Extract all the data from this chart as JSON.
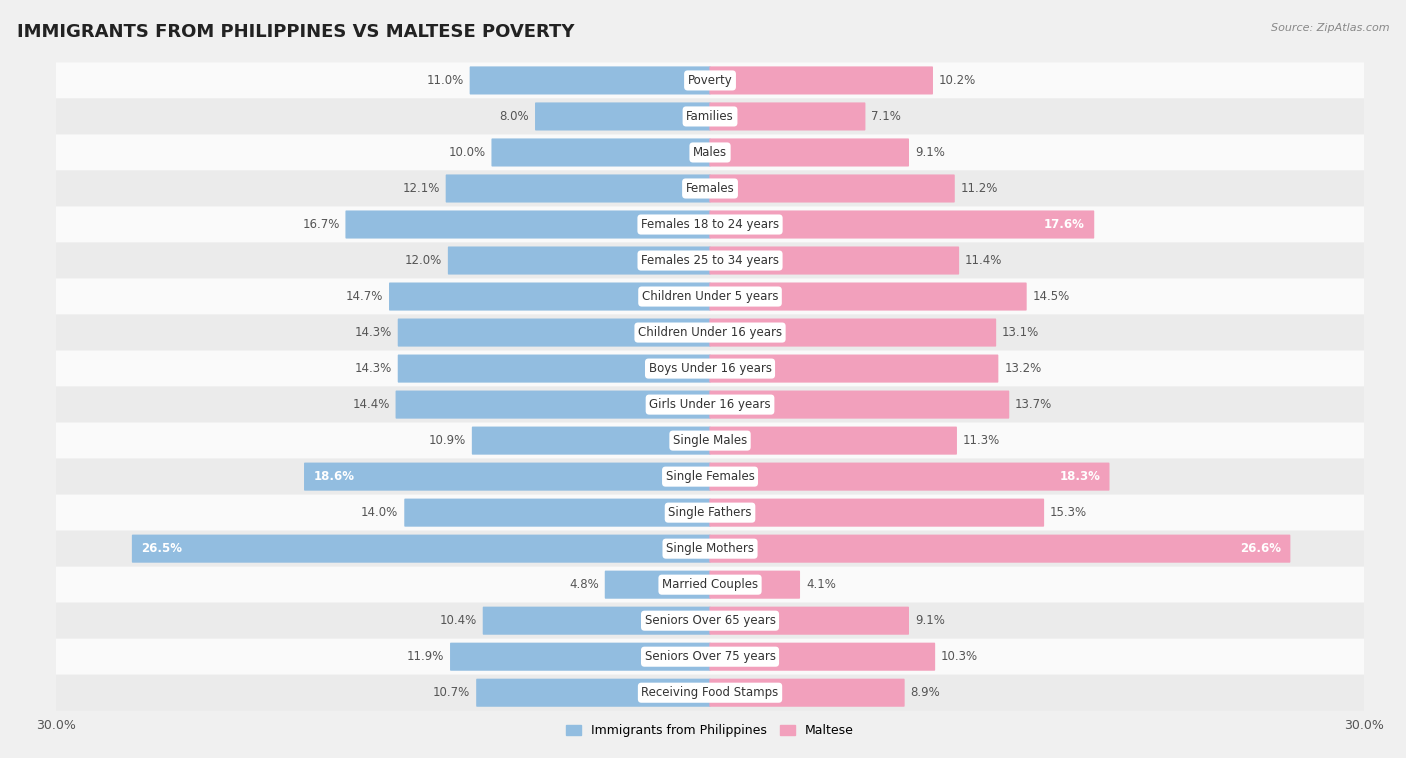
{
  "title": "IMMIGRANTS FROM PHILIPPINES VS MALTESE POVERTY",
  "source": "Source: ZipAtlas.com",
  "categories": [
    "Poverty",
    "Families",
    "Males",
    "Females",
    "Females 18 to 24 years",
    "Females 25 to 34 years",
    "Children Under 5 years",
    "Children Under 16 years",
    "Boys Under 16 years",
    "Girls Under 16 years",
    "Single Males",
    "Single Females",
    "Single Fathers",
    "Single Mothers",
    "Married Couples",
    "Seniors Over 65 years",
    "Seniors Over 75 years",
    "Receiving Food Stamps"
  ],
  "philippines_values": [
    11.0,
    8.0,
    10.0,
    12.1,
    16.7,
    12.0,
    14.7,
    14.3,
    14.3,
    14.4,
    10.9,
    18.6,
    14.0,
    26.5,
    4.8,
    10.4,
    11.9,
    10.7
  ],
  "maltese_values": [
    10.2,
    7.1,
    9.1,
    11.2,
    17.6,
    11.4,
    14.5,
    13.1,
    13.2,
    13.7,
    11.3,
    18.3,
    15.3,
    26.6,
    4.1,
    9.1,
    10.3,
    8.9
  ],
  "philippines_color": "#92bde0",
  "maltese_color": "#f2a0bc",
  "philippines_label": "Immigrants from Philippines",
  "maltese_label": "Maltese",
  "bar_height": 0.72,
  "xlim": 30,
  "background_color": "#f0f0f0",
  "row_colors": [
    "#fafafa",
    "#ebebeb"
  ],
  "title_fontsize": 13,
  "label_fontsize": 8.5,
  "value_fontsize": 8.5,
  "axis_label_fontsize": 9,
  "high_value_threshold": 17.5
}
